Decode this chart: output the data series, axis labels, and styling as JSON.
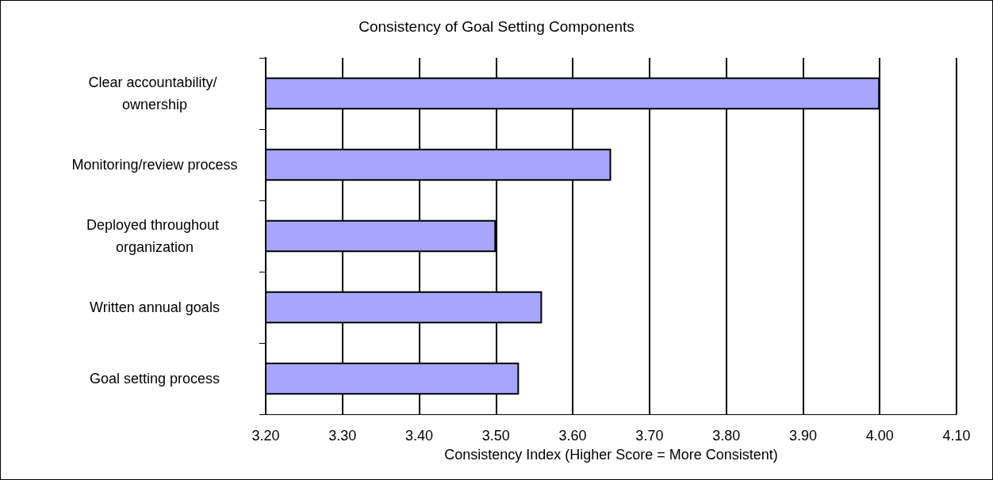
{
  "chart_data": {
    "type": "bar",
    "orientation": "horizontal",
    "title": "Consistency of Goal Setting Components",
    "xlabel": "Consistency Index (Higher Score = More Consistent)",
    "categories": [
      "Clear accountability/ ownership",
      "Monitoring/review process",
      "Deployed throughout organization",
      "Written annual goals",
      "Goal setting process"
    ],
    "values": [
      4.0,
      3.65,
      3.5,
      3.56,
      3.53
    ],
    "color": "#a6a6ff",
    "xlim": [
      3.2,
      4.1
    ],
    "xticks": [
      {
        "value": 3.2,
        "label": "3.20"
      },
      {
        "value": 3.3,
        "label": "3.30"
      },
      {
        "value": 3.4,
        "label": "3.40"
      },
      {
        "value": 3.5,
        "label": "3.50"
      },
      {
        "value": 3.6,
        "label": "3.60"
      },
      {
        "value": 3.7,
        "label": "3.70"
      },
      {
        "value": 3.8,
        "label": "3.80"
      },
      {
        "value": 3.9,
        "label": "3.90"
      },
      {
        "value": 4.0,
        "label": "4.00"
      },
      {
        "value": 4.1,
        "label": "4.10"
      }
    ],
    "grid": "x"
  }
}
